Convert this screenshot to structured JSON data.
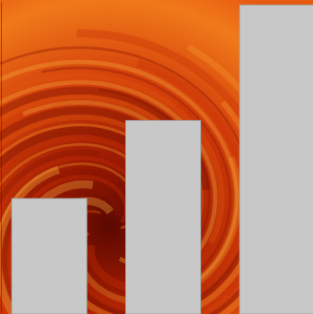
{
  "chart_data": {
    "type": "bar",
    "categories": [
      null,
      null,
      null
    ],
    "values": [
      37,
      62,
      99
    ],
    "color": "#c8c8c8",
    "ylim": [
      0,
      100
    ],
    "grid": false,
    "tick_labels": false
  }
}
